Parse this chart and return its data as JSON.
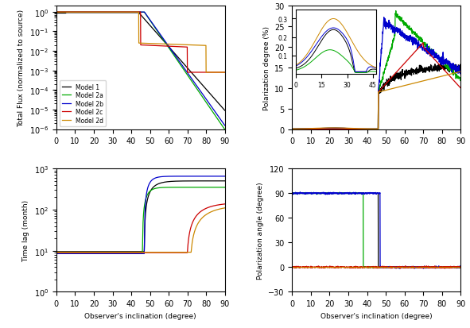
{
  "colors": {
    "model1": "black",
    "model2a": "#00aa00",
    "model2b": "#0000cc",
    "model2c": "#cc0000",
    "model2d": "#cc8800"
  },
  "legend_labels": [
    "Model 1",
    "Model 2a",
    "Model 2b",
    "Model 2c",
    "Model 2d"
  ],
  "xlim": [
    0,
    90
  ],
  "xticks": [
    0,
    10,
    20,
    30,
    40,
    50,
    60,
    70,
    80,
    90
  ],
  "xlabel": "Observer's inclination (degree)",
  "panel1_ylabel": "Total Flux (normalized to source)",
  "panel2_ylabel": "Polarization degree (%)",
  "panel2_ylim": [
    0,
    30
  ],
  "panel3_ylabel": "Time lag (month)",
  "panel4_ylabel": "Polarization angle (degree)",
  "panel4_ylim": [
    -30,
    120
  ],
  "panel4_yticks": [
    -30,
    0,
    30,
    60,
    90,
    120
  ]
}
